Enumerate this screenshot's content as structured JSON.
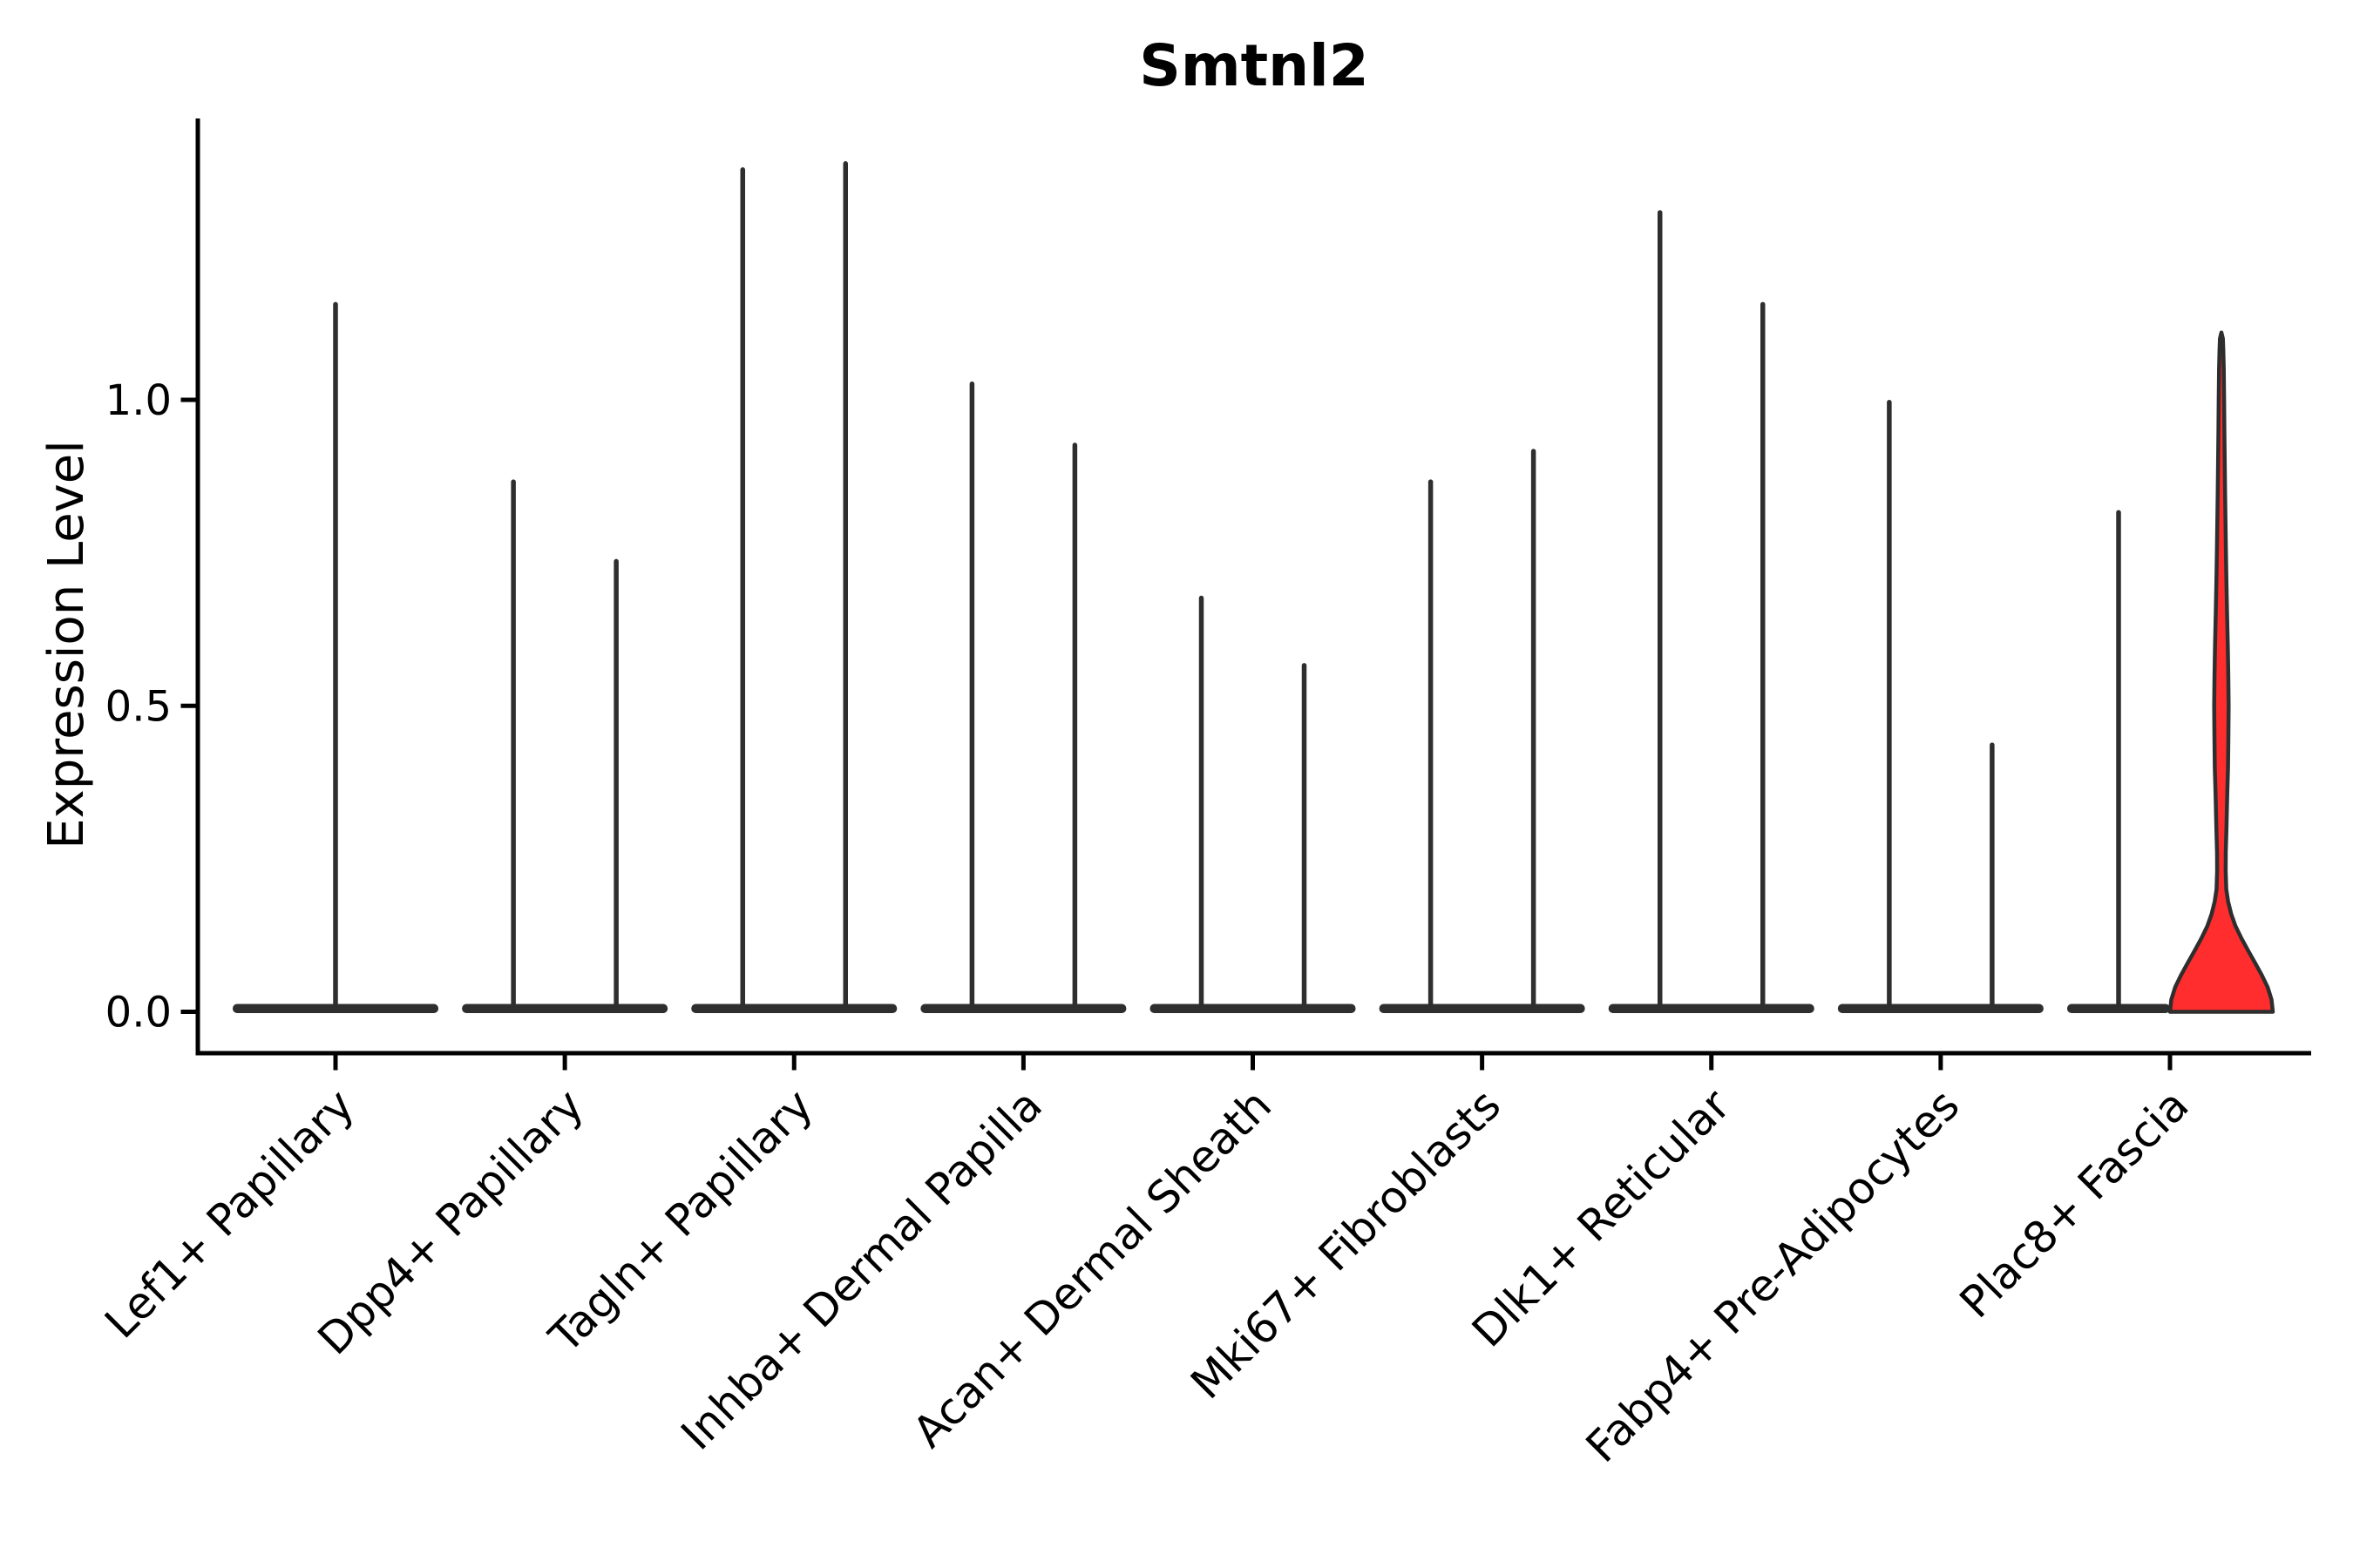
{
  "chart_data": {
    "type": "violin",
    "title": "Smtnl2",
    "xlabel": "",
    "ylabel": "Expression Level",
    "yticks": [
      0.0,
      0.5,
      1.0
    ],
    "ytick_labels": [
      "0.0",
      "0.5",
      "1.0"
    ],
    "ylim": [
      -0.07,
      1.46
    ],
    "grid": false,
    "legend": "none",
    "categories": [
      "Lef1+ Papillary",
      "Dpp4+ Papillary",
      "Tagln+ Papillary",
      "Inhba+ Dermal Papilla",
      "Acan+ Dermal Sheath",
      "Mki67+ Fibroblasts",
      "Dlk1+ Reticular",
      "Fabp4+ Pre-Adipocytes",
      "Plac8+ Fascia"
    ],
    "violins": [
      {
        "cat": 0,
        "pos": "center",
        "max": 1.16,
        "highlighted": false
      },
      {
        "cat": 1,
        "pos": "left",
        "max": 0.87,
        "highlighted": false
      },
      {
        "cat": 1,
        "pos": "right",
        "max": 0.74,
        "highlighted": false
      },
      {
        "cat": 2,
        "pos": "left",
        "max": 1.38,
        "highlighted": false
      },
      {
        "cat": 2,
        "pos": "right",
        "max": 1.39,
        "highlighted": false
      },
      {
        "cat": 3,
        "pos": "left",
        "max": 1.03,
        "highlighted": false
      },
      {
        "cat": 3,
        "pos": "right",
        "max": 0.93,
        "highlighted": false
      },
      {
        "cat": 4,
        "pos": "left",
        "max": 0.68,
        "highlighted": false
      },
      {
        "cat": 4,
        "pos": "right",
        "max": 0.57,
        "highlighted": false
      },
      {
        "cat": 5,
        "pos": "left",
        "max": 0.87,
        "highlighted": false
      },
      {
        "cat": 5,
        "pos": "right",
        "max": 0.92,
        "highlighted": false
      },
      {
        "cat": 6,
        "pos": "left",
        "max": 1.31,
        "highlighted": false
      },
      {
        "cat": 6,
        "pos": "right",
        "max": 1.16,
        "highlighted": false
      },
      {
        "cat": 7,
        "pos": "left",
        "max": 1.0,
        "highlighted": false
      },
      {
        "cat": 7,
        "pos": "right",
        "max": 0.44,
        "highlighted": false
      },
      {
        "cat": 8,
        "pos": "left",
        "max": 0.82,
        "highlighted": false
      },
      {
        "cat": 8,
        "pos": "right",
        "max": 1.11,
        "highlighted": true
      }
    ],
    "highlight_profile": [
      [
        0.0,
        1.0
      ],
      [
        0.02,
        0.975
      ],
      [
        0.04,
        0.9
      ],
      [
        0.06,
        0.785
      ],
      [
        0.08,
        0.655
      ],
      [
        0.1,
        0.52
      ],
      [
        0.12,
        0.39
      ],
      [
        0.14,
        0.275
      ],
      [
        0.16,
        0.19
      ],
      [
        0.18,
        0.13
      ],
      [
        0.2,
        0.095
      ],
      [
        0.23,
        0.083
      ],
      [
        0.26,
        0.085
      ],
      [
        0.3,
        0.098
      ],
      [
        0.35,
        0.112
      ],
      [
        0.4,
        0.128
      ],
      [
        0.45,
        0.136
      ],
      [
        0.5,
        0.14
      ],
      [
        0.55,
        0.134
      ],
      [
        0.6,
        0.124
      ],
      [
        0.65,
        0.11
      ],
      [
        0.7,
        0.098
      ],
      [
        0.75,
        0.088
      ],
      [
        0.8,
        0.079
      ],
      [
        0.85,
        0.071
      ],
      [
        0.9,
        0.064
      ],
      [
        0.95,
        0.057
      ],
      [
        1.0,
        0.052
      ],
      [
        1.05,
        0.045
      ],
      [
        1.08,
        0.038
      ],
      [
        1.1,
        0.028
      ],
      [
        1.11,
        0.0
      ]
    ]
  },
  "colors": {
    "violin_line": "#2e2e2e",
    "highlight_fill": "#ff2d2d",
    "axis": "#000000",
    "background": "#ffffff"
  }
}
